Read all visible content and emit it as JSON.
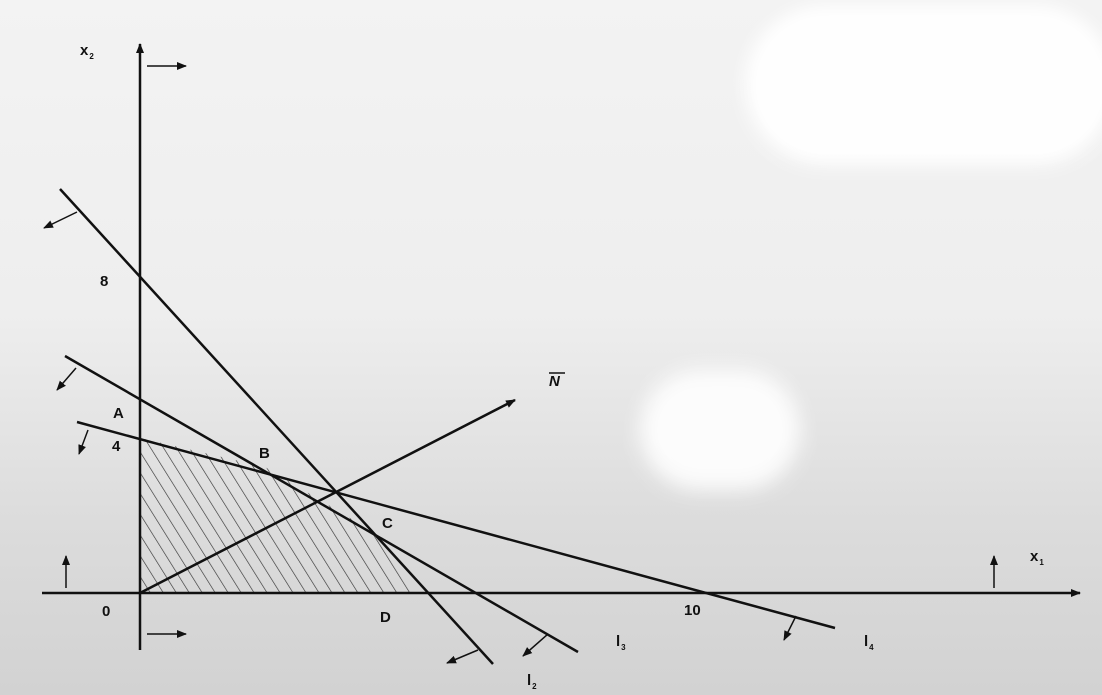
{
  "axes": {
    "x_label": "x",
    "x_sub": "1",
    "y_label": "x",
    "y_sub": "2"
  },
  "ticks": {
    "origin": "0",
    "y8": "8",
    "y4": "4",
    "x10": "10"
  },
  "points": {
    "A": "A",
    "B": "B",
    "C": "C",
    "D": "D"
  },
  "vector": {
    "label": "N"
  },
  "lines": {
    "l2_letter": "l",
    "l2_sub": "2",
    "l3_letter": "l",
    "l3_sub": "3",
    "l4_letter": "l",
    "l4_sub": "4"
  },
  "colors": {
    "ink": "#111111",
    "hatch": "#333333",
    "background": "#e9e9e9"
  }
}
